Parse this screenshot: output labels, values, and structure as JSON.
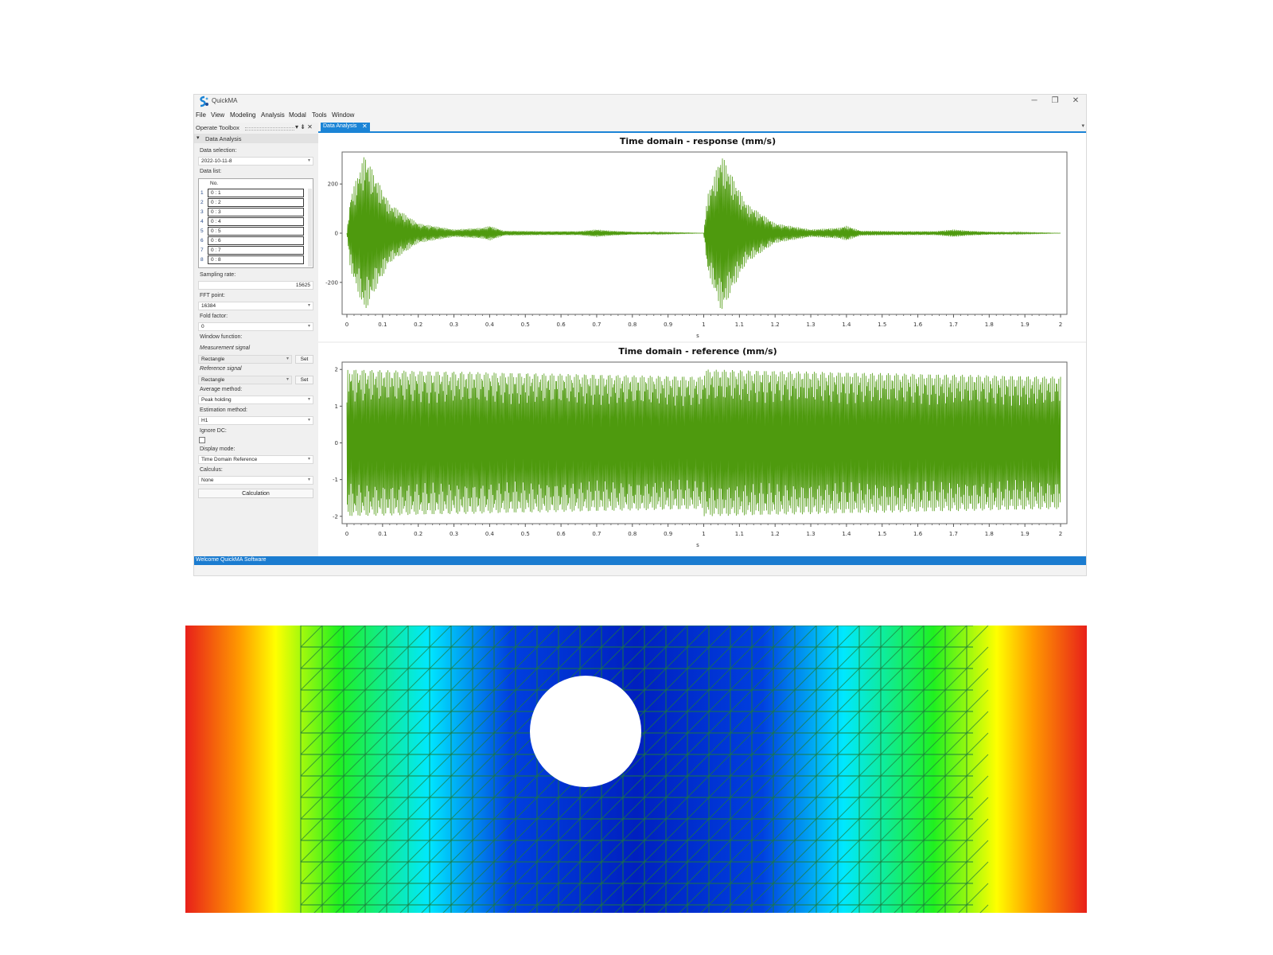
{
  "window": {
    "app_title": "QuickMA",
    "controls": [
      "─",
      "❐",
      "✕"
    ]
  },
  "menu": [
    "File",
    "View",
    "Modeling",
    "Analysis",
    "Modal",
    "Tools",
    "Window"
  ],
  "toolbox": {
    "title": "Operate Toolbox",
    "pin": "▾ ⇟ ✕",
    "section": "Data Analysis",
    "data_selection_label": "Data selection:",
    "data_selection_value": "2022-10-11-8",
    "data_list_label": "Data list:",
    "list_header": "No.",
    "list_rows": [
      {
        "n": "1",
        "v": "0 : 1"
      },
      {
        "n": "2",
        "v": "0 : 2"
      },
      {
        "n": "3",
        "v": "0 : 3"
      },
      {
        "n": "4",
        "v": "0 : 4"
      },
      {
        "n": "5",
        "v": "0 : 5"
      },
      {
        "n": "6",
        "v": "0 : 6"
      },
      {
        "n": "7",
        "v": "0 : 7"
      },
      {
        "n": "8",
        "v": "0 : 8"
      }
    ],
    "sampling_rate_label": "Sampling rate:",
    "sampling_rate_value": "15625",
    "fft_point_label": "FFT point:",
    "fft_point_value": "16384",
    "fold_factor_label": "Fold factor:",
    "fold_factor_value": "0",
    "window_function_label": "Window function:",
    "measurement_signal_label": "Measurement signal",
    "measurement_signal_value": "Rectangle",
    "reference_signal_label": "Reference signal",
    "reference_signal_value": "Rectangle",
    "set_label": "Set",
    "average_method_label": "Average method:",
    "average_method_value": "Peak holding",
    "estimation_method_label": "Estimation method:",
    "estimation_method_value": "H1",
    "ignore_dc_label": "Ignore DC:",
    "display_mode_label": "Display mode:",
    "display_mode_value": "Time Domain Reference",
    "calculus_label": "Calculus:",
    "calculus_value": "None",
    "calculation_button": "Calculation"
  },
  "tab": {
    "label": "Data Analysis",
    "close": "✕",
    "overflow": "▾"
  },
  "status": "Welcome QuickMA Software",
  "colors": {
    "accent": "#1b84d6",
    "signal": "#4e9a0e"
  },
  "chart_data": [
    {
      "type": "line",
      "title": "Time domain - response (mm/s)",
      "xlabel": "s",
      "ylabel": "",
      "xlim": [
        0,
        2
      ],
      "ylim": [
        -330,
        330
      ],
      "yticks": [
        200,
        0,
        -200
      ],
      "xticks": [
        "0",
        "0.1",
        "0.2",
        "0.3",
        "0.4",
        "0.5",
        "0.6",
        "0.7",
        "0.8",
        "0.9",
        "1",
        "1.1",
        "1.2",
        "1.3",
        "1.4",
        "1.5",
        "1.6",
        "1.7",
        "1.8",
        "1.9",
        "2"
      ],
      "series": [
        {
          "color": "#4e9a0e",
          "envelope_points": [
            [
              0,
              0
            ],
            [
              0.01,
              150
            ],
            [
              0.05,
              320
            ],
            [
              0.08,
              230
            ],
            [
              0.12,
              120
            ],
            [
              0.2,
              40
            ],
            [
              0.3,
              15
            ],
            [
              0.38,
              22
            ],
            [
              0.4,
              30
            ],
            [
              0.44,
              10
            ],
            [
              0.55,
              8
            ],
            [
              0.65,
              8
            ],
            [
              0.7,
              15
            ],
            [
              0.74,
              10
            ],
            [
              0.8,
              6
            ],
            [
              0.9,
              3
            ],
            [
              1.0,
              0
            ],
            [
              1.01,
              150
            ],
            [
              1.05,
              320
            ],
            [
              1.08,
              230
            ],
            [
              1.12,
              120
            ],
            [
              1.2,
              40
            ],
            [
              1.3,
              15
            ],
            [
              1.38,
              22
            ],
            [
              1.4,
              30
            ],
            [
              1.44,
              10
            ],
            [
              1.55,
              8
            ],
            [
              1.65,
              8
            ],
            [
              1.7,
              15
            ],
            [
              1.74,
              10
            ],
            [
              1.8,
              6
            ],
            [
              1.9,
              3
            ],
            [
              2.0,
              0
            ]
          ]
        }
      ]
    },
    {
      "type": "line",
      "title": "Time domain - reference (mm/s)",
      "xlabel": "s",
      "ylabel": "",
      "xlim": [
        0,
        2
      ],
      "ylim": [
        -2.2,
        2.2
      ],
      "yticks": [
        2,
        1,
        0,
        -1,
        -2
      ],
      "xticks": [
        "0",
        "0.1",
        "0.2",
        "0.3",
        "0.4",
        "0.5",
        "0.6",
        "0.7",
        "0.8",
        "0.9",
        "1",
        "1.1",
        "1.2",
        "1.3",
        "1.4",
        "1.5",
        "1.6",
        "1.7",
        "1.8",
        "1.9",
        "2"
      ],
      "series": [
        {
          "color": "#4e9a0e",
          "envelope_points": [
            [
              0,
              2.0
            ],
            [
              1.0,
              1.8
            ],
            [
              1.0,
              2.0
            ],
            [
              2.0,
              1.8
            ]
          ]
        }
      ]
    }
  ],
  "fem": {
    "colors": [
      "#e8201a",
      "#ffff00",
      "#20f020",
      "#00e8ff",
      "#0020c0"
    ]
  }
}
